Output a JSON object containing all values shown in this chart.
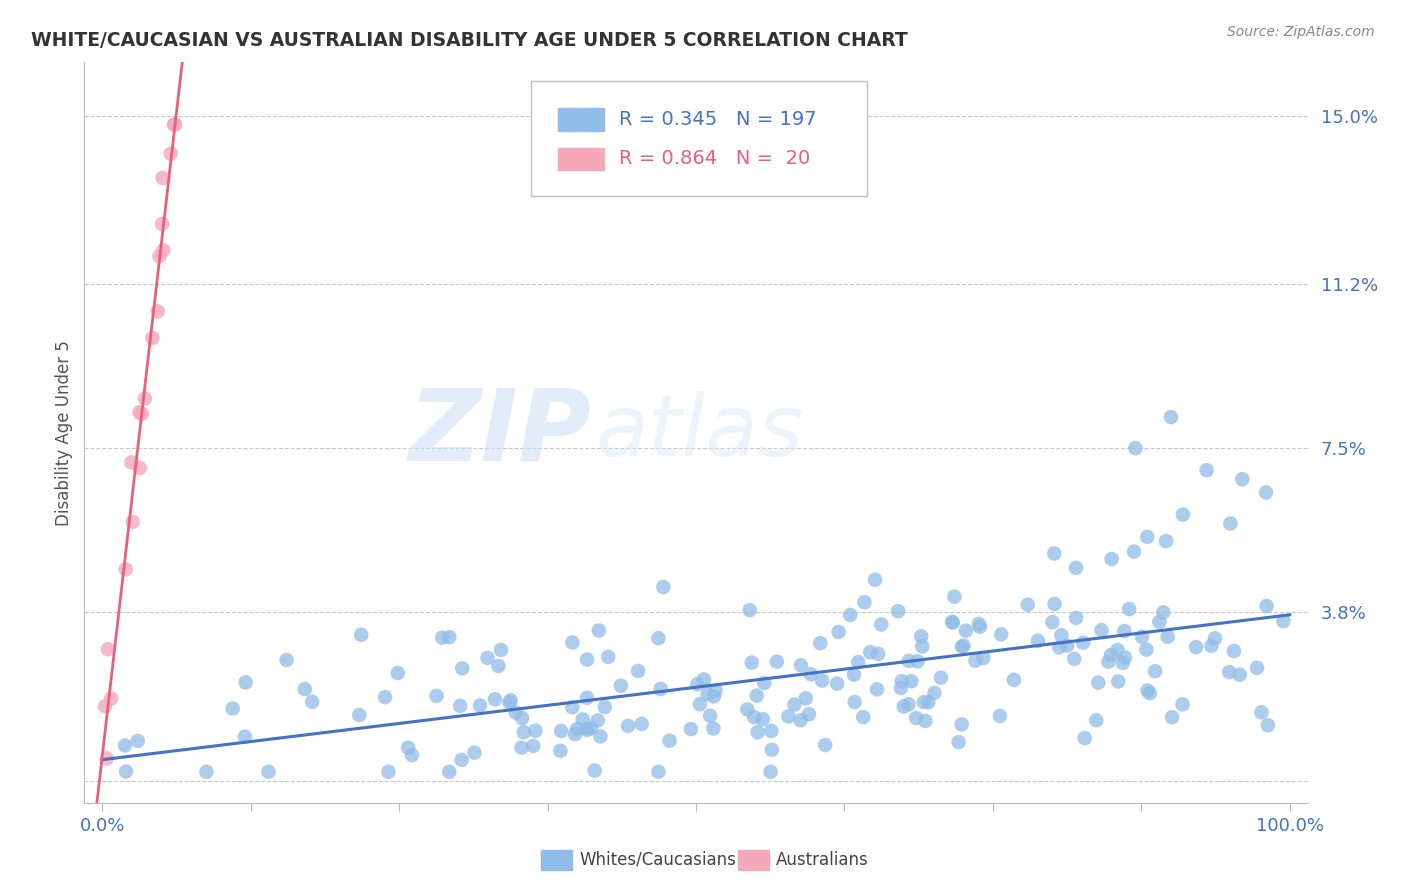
{
  "title": "WHITE/CAUCASIAN VS AUSTRALIAN DISABILITY AGE UNDER 5 CORRELATION CHART",
  "source": "Source: ZipAtlas.com",
  "ylabel": "Disability Age Under 5",
  "yticks": [
    0.0,
    0.038,
    0.075,
    0.112,
    0.15
  ],
  "ytick_labels": [
    "",
    "3.8%",
    "7.5%",
    "11.2%",
    "15.0%"
  ],
  "xlim": [
    -0.015,
    1.015
  ],
  "ylim": [
    -0.005,
    0.162
  ],
  "legend_blue_r": "0.345",
  "legend_blue_n": "197",
  "legend_pink_r": "0.864",
  "legend_pink_n": "20",
  "legend_label_blue": "Whites/Caucasians",
  "legend_label_pink": "Australians",
  "blue_color": "#90bce8",
  "pink_color": "#f5a8ba",
  "blue_line_color": "#4472c4",
  "pink_line_color": "#e8607a",
  "text_color": "#4472c4",
  "dark_text": "#333333",
  "background_color": "#ffffff",
  "grid_color": "#c8c8c8",
  "watermark_zip_color": "#c5d8f0",
  "watermark_atlas_color": "#d8e8f5",
  "source_color": "#888888"
}
